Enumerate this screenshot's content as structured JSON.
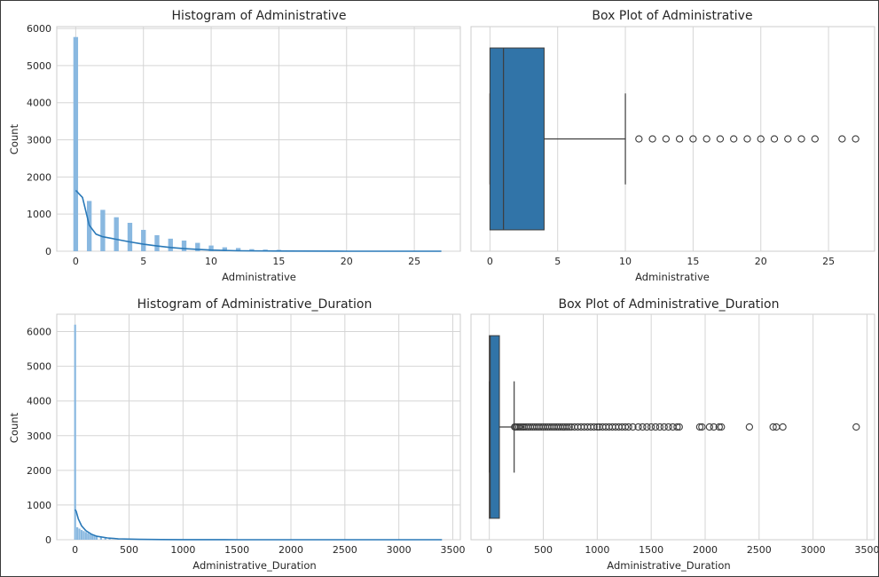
{
  "colors": {
    "bar": "#89b8e0",
    "kde": "#2a79b8",
    "box": "#3174a8",
    "grid": "#d5d5d5",
    "outlier": "#3d3d3d"
  },
  "chart_data": [
    {
      "type": "bar",
      "title": "Histogram of Administrative",
      "xlabel": "Administrative",
      "ylabel": "Count",
      "xlim": [
        -1.4,
        28.4
      ],
      "ylim": [
        0,
        6050
      ],
      "xticks": [
        "0",
        "5",
        "10",
        "15",
        "20",
        "25"
      ],
      "xtick_values": [
        0,
        5,
        10,
        15,
        20,
        25
      ],
      "yticks": [
        "0",
        "1000",
        "2000",
        "3000",
        "4000",
        "5000",
        "6000"
      ],
      "ytick_values": [
        0,
        1000,
        2000,
        3000,
        4000,
        5000,
        6000
      ],
      "bar_x": [
        0,
        1,
        2,
        3,
        4,
        5,
        6,
        7,
        8,
        9,
        10,
        11,
        12,
        13,
        14,
        15,
        16,
        17,
        18,
        19,
        20,
        21,
        22,
        23,
        24,
        25,
        26,
        27
      ],
      "bar_values": [
        5770,
        1354,
        1114,
        915,
        765,
        575,
        432,
        338,
        287,
        225,
        153,
        105,
        86,
        56,
        44,
        38,
        24,
        16,
        12,
        6,
        2,
        1,
        4,
        4,
        4,
        0,
        1,
        1
      ],
      "bar_width": 0.35,
      "kde": {
        "x": [
          0,
          0.5,
          1,
          1.5,
          2,
          3,
          4,
          5,
          6,
          7,
          8,
          9,
          10,
          12,
          15,
          20,
          27
        ],
        "y": [
          1640,
          1450,
          700,
          460,
          390,
          320,
          250,
          190,
          140,
          100,
          70,
          50,
          30,
          12,
          4,
          1,
          0
        ]
      }
    },
    {
      "type": "box",
      "title": "Box Plot of Administrative",
      "xlabel": "Administrative",
      "xlim": [
        -1.4,
        28.4
      ],
      "xticks": [
        "0",
        "5",
        "10",
        "15",
        "20",
        "25"
      ],
      "xtick_values": [
        0,
        5,
        10,
        15,
        20,
        25
      ],
      "box": {
        "min": 0,
        "q1": 0,
        "median": 1,
        "q3": 4,
        "whisker_high": 10
      },
      "outliers": [
        11,
        12,
        13,
        14,
        15,
        16,
        17,
        18,
        19,
        20,
        21,
        22,
        23,
        24,
        26,
        27
      ]
    },
    {
      "type": "bar",
      "title": "Histogram of Administrative_Duration",
      "xlabel": "Administrative_Duration",
      "ylabel": "Count",
      "xlim": [
        -170,
        3570
      ],
      "ylim": [
        0,
        6500
      ],
      "xticks": [
        "0",
        "500",
        "1000",
        "1500",
        "2000",
        "2500",
        "3000",
        "3500"
      ],
      "xtick_values": [
        0,
        500,
        1000,
        1500,
        2000,
        2500,
        3000,
        3500
      ],
      "yticks": [
        "0",
        "1000",
        "2000",
        "3000",
        "4000",
        "5000",
        "6000"
      ],
      "ytick_values": [
        0,
        1000,
        2000,
        3000,
        4000,
        5000,
        6000
      ],
      "bar_x": [
        0,
        20,
        40,
        60,
        80,
        100,
        120,
        140,
        160,
        180,
        200,
        240,
        280,
        320,
        400,
        500,
        600,
        800,
        1000,
        1500,
        2000,
        2500,
        3000,
        3400
      ],
      "bar_values": [
        6200,
        360,
        320,
        280,
        250,
        220,
        190,
        160,
        140,
        120,
        100,
        80,
        60,
        50,
        40,
        30,
        20,
        12,
        8,
        4,
        2,
        2,
        1,
        1
      ],
      "bar_width": 18,
      "kde": {
        "x": [
          0,
          10,
          30,
          60,
          100,
          150,
          200,
          300,
          400,
          600,
          800,
          1000,
          1500,
          2000,
          3000,
          3400
        ],
        "y": [
          870,
          820,
          600,
          400,
          260,
          160,
          100,
          50,
          25,
          10,
          5,
          3,
          1,
          0,
          0,
          0
        ]
      }
    },
    {
      "type": "box",
      "title": "Box Plot of Administrative_Duration",
      "xlabel": "Administrative_Duration",
      "xlim": [
        -170,
        3570
      ],
      "xticks": [
        "0",
        "500",
        "1000",
        "1500",
        "2000",
        "2500",
        "3000",
        "3500"
      ],
      "xtick_values": [
        0,
        500,
        1000,
        1500,
        2000,
        2500,
        3000,
        3500
      ],
      "box": {
        "min": 0,
        "q1": 0,
        "median": 7.5,
        "q3": 93.3,
        "whisker_high": 230
      },
      "outliers": [
        235,
        245,
        260,
        275,
        290,
        305,
        320,
        340,
        360,
        380,
        400,
        420,
        440,
        460,
        480,
        500,
        520,
        540,
        560,
        580,
        600,
        620,
        640,
        660,
        680,
        700,
        720,
        740,
        760,
        790,
        820,
        850,
        880,
        910,
        940,
        970,
        1000,
        1020,
        1050,
        1080,
        1110,
        1140,
        1170,
        1200,
        1230,
        1260,
        1290,
        1330,
        1380,
        1420,
        1460,
        1500,
        1540,
        1580,
        1620,
        1660,
        1700,
        1740,
        1760,
        1950,
        1970,
        2040,
        2080,
        2130,
        2150,
        2410,
        2630,
        2660,
        2720,
        3400
      ]
    }
  ]
}
